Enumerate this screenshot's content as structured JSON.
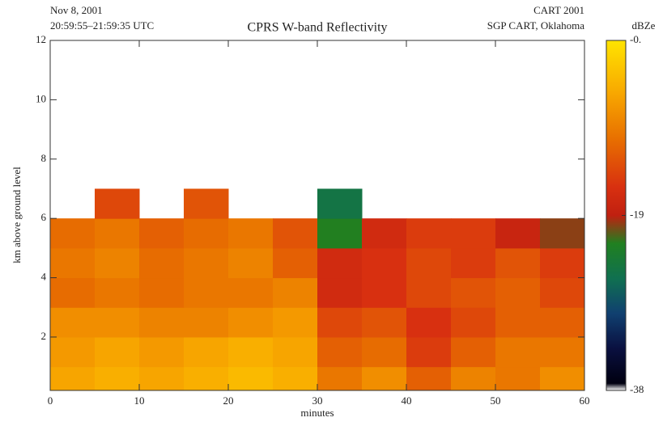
{
  "chart_data": {
    "type": "heatmap",
    "title": "CPRS W-band Reflectivity",
    "date": "Nov  8, 2001",
    "time_range": "20:59:55–21:59:35 UTC",
    "campaign": "CART 2001",
    "site": "SGP CART, Oklahoma",
    "xlabel": "minutes",
    "ylabel": "km above ground level",
    "xlim": [
      0,
      60
    ],
    "xticks": [
      0,
      10,
      20,
      30,
      40,
      50,
      60
    ],
    "ylim": [
      0.2,
      12
    ],
    "yticks": [
      2,
      4,
      6,
      8,
      10,
      12
    ],
    "x_bins": [
      0,
      5,
      10,
      15,
      20,
      25,
      30,
      35,
      40,
      45,
      50,
      55,
      60
    ],
    "y_bins": [
      0.2,
      1,
      2,
      3,
      4,
      5,
      6,
      7,
      8,
      9,
      10,
      11,
      12
    ],
    "z": [
      [
        -6,
        -5,
        -6,
        -5,
        -4,
        -5,
        -10,
        -8,
        -12,
        -9,
        -10,
        -8
      ],
      [
        -7,
        -6,
        -7,
        -6,
        -5,
        -6,
        -12,
        -11,
        -15,
        -12,
        -10,
        -10
      ],
      [
        -8,
        -8,
        -9,
        -9,
        -8,
        -7,
        -14,
        -13,
        -16,
        -14,
        -12,
        -12
      ],
      [
        -11,
        -10,
        -11,
        -10,
        -10,
        -9,
        -17,
        -16,
        -14,
        -13,
        -12,
        -14
      ],
      [
        -10,
        -9,
        -11,
        -10,
        -9,
        -12,
        -17,
        -16,
        -14,
        -15,
        -13,
        -15
      ],
      [
        -11,
        -10,
        -12,
        -11,
        -10,
        -13,
        -22,
        -17,
        -15,
        -15,
        -18,
        -20
      ],
      [
        null,
        -14,
        null,
        -13,
        null,
        null,
        -25,
        null,
        null,
        null,
        null,
        null
      ],
      [
        null,
        null,
        null,
        null,
        null,
        null,
        null,
        null,
        null,
        null,
        null,
        null
      ],
      [
        null,
        null,
        null,
        null,
        null,
        null,
        null,
        null,
        null,
        null,
        null,
        null
      ],
      [
        null,
        null,
        null,
        null,
        null,
        null,
        null,
        null,
        null,
        null,
        null,
        null
      ],
      [
        null,
        null,
        null,
        null,
        null,
        null,
        null,
        null,
        null,
        null,
        null,
        null
      ],
      [
        null,
        null,
        null,
        null,
        null,
        null,
        null,
        null,
        null,
        null,
        null,
        null
      ]
    ],
    "colorbar_label": "dBZe",
    "clim": [
      -38,
      0
    ],
    "cticks": [
      {
        "value": 0,
        "label": "-0."
      },
      -19,
      -38
    ]
  }
}
